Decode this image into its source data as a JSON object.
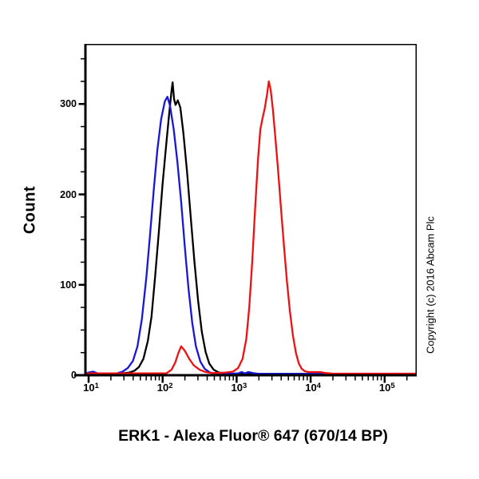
{
  "figure": {
    "x_axis_title": "ERK1 - Alexa Fluor® 647 (670/14 BP)",
    "y_axis_title": "Count",
    "copyright": "Copyright (c) 2016 Abcam Plc"
  },
  "colors": {
    "background": "#ffffff",
    "axis": "#000000",
    "blue_series": "#1717d6",
    "black_series": "#000000",
    "red_series": "#ee1111"
  },
  "chart_data": {
    "type": "line",
    "subtype": "flow-cytometry-histogram-overlay",
    "title": "",
    "xlabel": "ERK1 - Alexa Fluor® 647 (670/14 BP)",
    "ylabel": "Count",
    "x_scale": "log10",
    "xlim_log10": [
      0.957,
      5.434
    ],
    "x_major_tick_exponents": [
      1,
      2,
      3,
      4,
      5
    ],
    "x_minor_ticks": "multiples 2-9 within each decade, plus 2e5",
    "ylim": [
      0,
      366
    ],
    "y_major_ticks": [
      0,
      100,
      200,
      300
    ],
    "y_minor_tick_step": 25,
    "grid": false,
    "legend": "none",
    "series": [
      {
        "name": "black",
        "color": "#000000",
        "peak_x": 136,
        "peak_count": 324,
        "points_log10x_count": [
          [
            0.957,
            1.5
          ],
          [
            1.2,
            1.5
          ],
          [
            1.35,
            1.5
          ],
          [
            1.45,
            2
          ],
          [
            1.55,
            3
          ],
          [
            1.62,
            5
          ],
          [
            1.68,
            9
          ],
          [
            1.74,
            18
          ],
          [
            1.8,
            38
          ],
          [
            1.85,
            65
          ],
          [
            1.9,
            110
          ],
          [
            1.95,
            160
          ],
          [
            2.0,
            212
          ],
          [
            2.05,
            256
          ],
          [
            2.09,
            290
          ],
          [
            2.12,
            314
          ],
          [
            2.135,
            324
          ],
          [
            2.155,
            305
          ],
          [
            2.175,
            299
          ],
          [
            2.205,
            304
          ],
          [
            2.24,
            296
          ],
          [
            2.28,
            268
          ],
          [
            2.33,
            225
          ],
          [
            2.38,
            175
          ],
          [
            2.43,
            125
          ],
          [
            2.48,
            82
          ],
          [
            2.53,
            48
          ],
          [
            2.58,
            26
          ],
          [
            2.63,
            13
          ],
          [
            2.69,
            6
          ],
          [
            2.76,
            3
          ],
          [
            2.85,
            2
          ],
          [
            3.0,
            1.5
          ],
          [
            3.6,
            1.5
          ],
          [
            4.3,
            1.5
          ],
          [
            5.43,
            1.5
          ]
        ]
      },
      {
        "name": "blue",
        "color": "#1717d6",
        "peak_x": 116,
        "peak_count": 308,
        "points_log10x_count": [
          [
            0.957,
            2
          ],
          [
            1.0,
            3
          ],
          [
            1.06,
            4
          ],
          [
            1.12,
            2
          ],
          [
            1.25,
            1.5
          ],
          [
            1.38,
            2
          ],
          [
            1.46,
            4
          ],
          [
            1.53,
            8
          ],
          [
            1.6,
            16
          ],
          [
            1.66,
            32
          ],
          [
            1.72,
            62
          ],
          [
            1.78,
            108
          ],
          [
            1.83,
            155
          ],
          [
            1.88,
            205
          ],
          [
            1.93,
            250
          ],
          [
            1.98,
            283
          ],
          [
            2.03,
            303
          ],
          [
            2.065,
            308
          ],
          [
            2.1,
            298
          ],
          [
            2.15,
            272
          ],
          [
            2.2,
            236
          ],
          [
            2.25,
            192
          ],
          [
            2.3,
            142
          ],
          [
            2.35,
            96
          ],
          [
            2.4,
            58
          ],
          [
            2.45,
            32
          ],
          [
            2.51,
            15
          ],
          [
            2.57,
            7
          ],
          [
            2.64,
            3
          ],
          [
            2.72,
            2
          ],
          [
            2.9,
            1.5
          ],
          [
            3.02,
            2
          ],
          [
            3.07,
            3.5
          ],
          [
            3.11,
            2
          ],
          [
            3.16,
            3.5
          ],
          [
            3.22,
            2.5
          ],
          [
            3.3,
            1.5
          ],
          [
            4.0,
            1.5
          ],
          [
            5.43,
            1.5
          ]
        ]
      },
      {
        "name": "red",
        "color": "#ee1111",
        "peak_x": 2700,
        "peak_count": 325,
        "points_log10x_count": [
          [
            0.957,
            2
          ],
          [
            1.5,
            2
          ],
          [
            1.9,
            2
          ],
          [
            2.05,
            2
          ],
          [
            2.12,
            6
          ],
          [
            2.17,
            14
          ],
          [
            2.21,
            24
          ],
          [
            2.25,
            32
          ],
          [
            2.3,
            27
          ],
          [
            2.36,
            18
          ],
          [
            2.42,
            11
          ],
          [
            2.5,
            6
          ],
          [
            2.58,
            3.5
          ],
          [
            2.66,
            2.5
          ],
          [
            2.75,
            2.5
          ],
          [
            2.85,
            3
          ],
          [
            2.95,
            4
          ],
          [
            3.02,
            8
          ],
          [
            3.08,
            18
          ],
          [
            3.13,
            40
          ],
          [
            3.17,
            75
          ],
          [
            3.21,
            125
          ],
          [
            3.25,
            185
          ],
          [
            3.29,
            240
          ],
          [
            3.32,
            272
          ],
          [
            3.35,
            284
          ],
          [
            3.38,
            295
          ],
          [
            3.41,
            310
          ],
          [
            3.435,
            325
          ],
          [
            3.46,
            316
          ],
          [
            3.49,
            294
          ],
          [
            3.52,
            266
          ],
          [
            3.56,
            227
          ],
          [
            3.6,
            184
          ],
          [
            3.64,
            143
          ],
          [
            3.68,
            104
          ],
          [
            3.72,
            71
          ],
          [
            3.76,
            44
          ],
          [
            3.8,
            25
          ],
          [
            3.84,
            13
          ],
          [
            3.88,
            7
          ],
          [
            3.92,
            4.5
          ],
          [
            3.97,
            3.5
          ],
          [
            4.05,
            3.5
          ],
          [
            4.13,
            3.5
          ],
          [
            4.2,
            2.5
          ],
          [
            4.3,
            1.8
          ],
          [
            4.6,
            1.8
          ],
          [
            5.0,
            1.8
          ],
          [
            5.43,
            1.8
          ]
        ]
      }
    ]
  }
}
